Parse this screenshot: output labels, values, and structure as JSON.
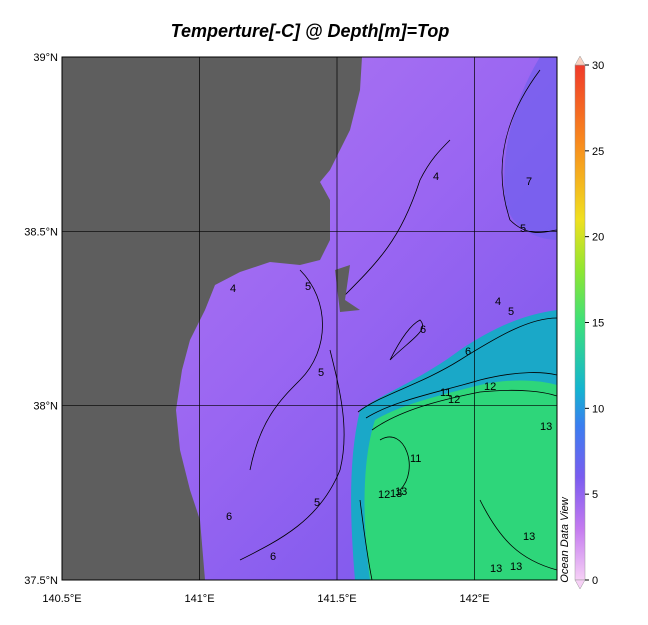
{
  "title": "Temperture[-C] @ Depth[m]=Top",
  "lon_range": [
    140.5,
    142.3
  ],
  "lat_range": [
    37.5,
    39
  ],
  "lon_ticks": [
    {
      "value": 140.5,
      "label": "140.5°E"
    },
    {
      "value": 141,
      "label": "141°E"
    },
    {
      "value": 141.5,
      "label": "141.5°E"
    },
    {
      "value": 142,
      "label": "142°E"
    }
  ],
  "lat_ticks": [
    {
      "value": 39,
      "label": "39°N"
    },
    {
      "value": 38.5,
      "label": "38.5°N"
    },
    {
      "value": 38,
      "label": "38°N"
    },
    {
      "value": 37.5,
      "label": "37.5°N"
    }
  ],
  "colorbar": {
    "range": [
      0,
      30
    ],
    "ticks": [
      0,
      5,
      10,
      15,
      20,
      25,
      30
    ]
  },
  "watermark": "Ocean Data View",
  "contour_labels": [
    "5",
    "4",
    "6",
    "5",
    "5",
    "4",
    "6",
    "5",
    "4",
    "5",
    "6",
    "12",
    "11",
    "12",
    "13",
    "13",
    "11",
    "12",
    "13",
    "13",
    "13",
    "13",
    "6",
    "7"
  ]
}
